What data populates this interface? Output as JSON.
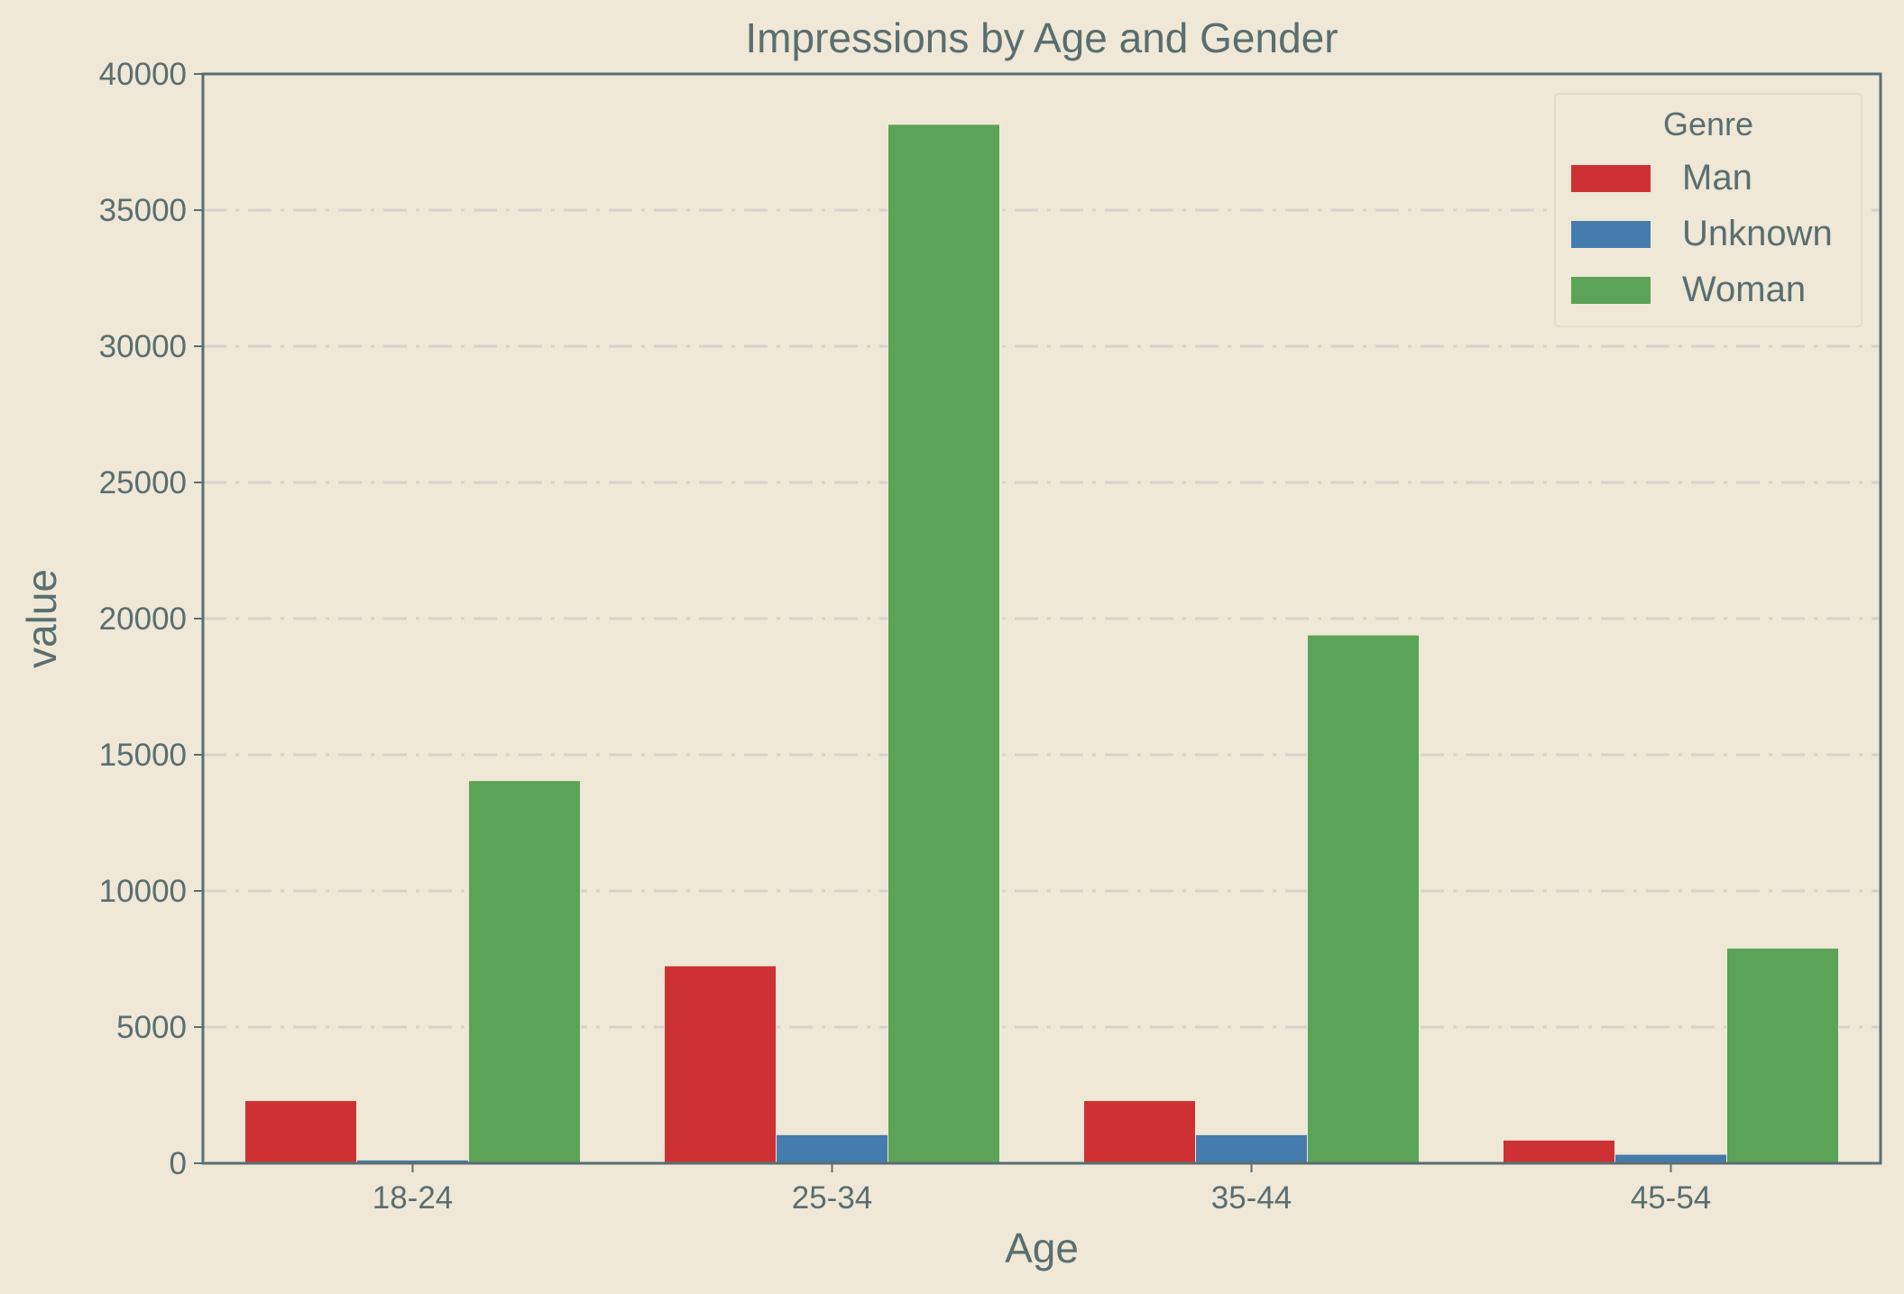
{
  "chart_data": {
    "type": "bar",
    "title": "Impressions by Age and Gender",
    "xlabel": "Age",
    "ylabel": "value",
    "categories": [
      "18-24",
      "25-34",
      "35-44",
      "45-54"
    ],
    "ylim": [
      0,
      40000
    ],
    "yticks": [
      0,
      5000,
      10000,
      15000,
      20000,
      25000,
      30000,
      35000,
      40000
    ],
    "grid": true,
    "legend": {
      "title": "Genre",
      "placement": "top-right"
    },
    "series": [
      {
        "name": "Man",
        "color": "#cd3134",
        "values": [
          2300,
          7250,
          2300,
          850
        ]
      },
      {
        "name": "Unknown",
        "color": "#447cae",
        "values": [
          120,
          1050,
          1050,
          330
        ]
      },
      {
        "name": "Woman",
        "color": "#5ba357",
        "values": [
          14050,
          38150,
          19400,
          7900
        ]
      }
    ]
  }
}
